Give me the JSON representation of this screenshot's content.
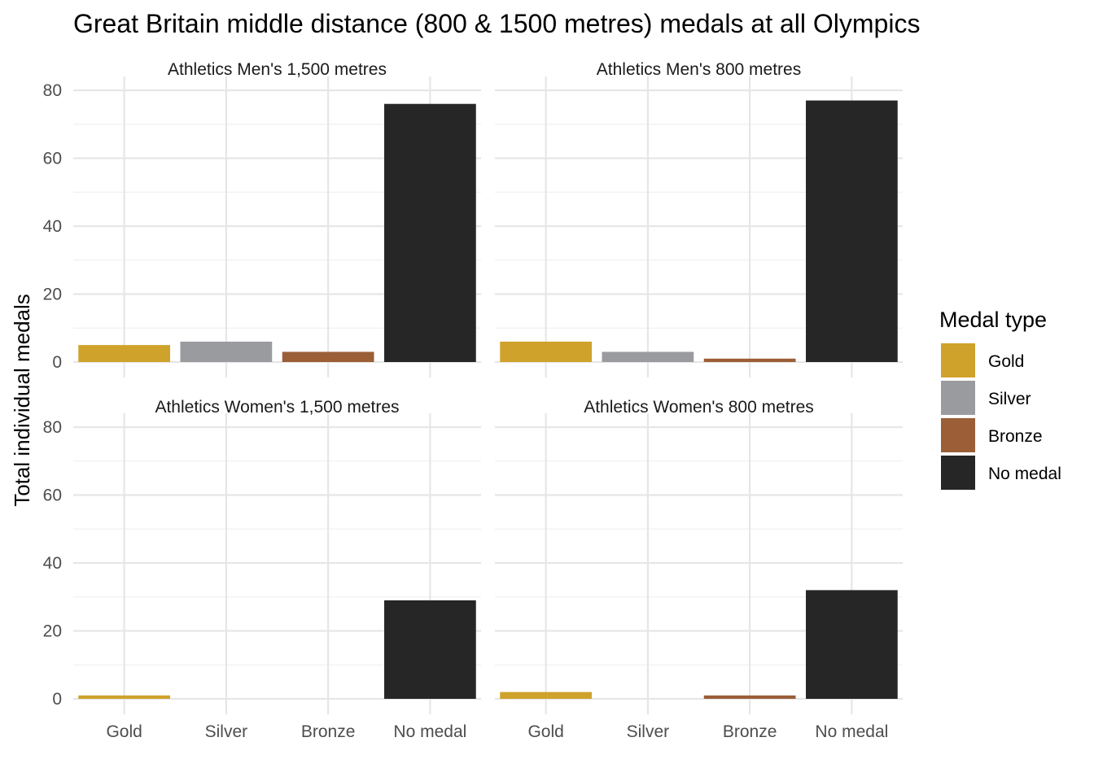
{
  "chart_data": {
    "type": "bar",
    "title": "Great Britain middle distance (800 & 1500 metres) medals at all Olympics",
    "ylabel": "Total individual medals",
    "xlabel": "",
    "ylim": [
      0,
      80
    ],
    "yticks": [
      0,
      20,
      40,
      60,
      80
    ],
    "categories": [
      "Gold",
      "Silver",
      "Bronze",
      "No medal"
    ],
    "grid": true,
    "legend": {
      "title": "Medal type",
      "placement": "right",
      "items": [
        {
          "label": "Gold",
          "color": "#CFA22B"
        },
        {
          "label": "Silver",
          "color": "#9A9B9F"
        },
        {
          "label": "Bronze",
          "color": "#9B5E37"
        },
        {
          "label": "No medal",
          "color": "#262626"
        }
      ]
    },
    "panels": [
      {
        "strip": "Athletics Men's 1,500 metres",
        "values": [
          5,
          6,
          3,
          76
        ]
      },
      {
        "strip": "Athletics Men's 800 metres",
        "values": [
          6,
          3,
          1,
          77
        ]
      },
      {
        "strip": "Athletics Women's 1,500 metres",
        "values": [
          1,
          0,
          0,
          29
        ]
      },
      {
        "strip": "Athletics Women's 800 metres",
        "values": [
          2,
          0,
          1,
          32
        ]
      }
    ]
  }
}
